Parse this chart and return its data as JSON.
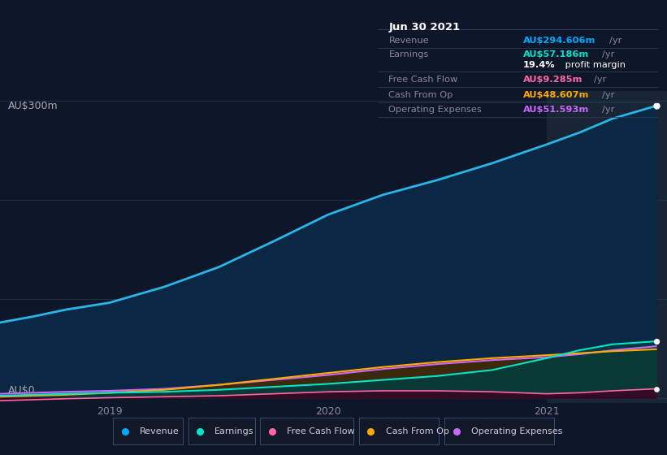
{
  "background_color": "#0e1629",
  "chart_bg_color": "#0e1629",
  "grid_color": "#1e3050",
  "title_box": {
    "date": "Jun 30 2021",
    "rows": [
      {
        "label": "Revenue",
        "value": "AU$294.606m",
        "unit": "/yr",
        "value_color": "#00aaff",
        "label_color": "#888899"
      },
      {
        "label": "Earnings",
        "value": "AU$57.186m",
        "unit": "/yr",
        "value_color": "#00e5cc",
        "label_color": "#888899"
      },
      {
        "label": "",
        "value": "19.4%",
        "unit": " profit margin",
        "value_color": "#ffffff",
        "label_color": "#888899"
      },
      {
        "label": "Free Cash Flow",
        "value": "AU$9.285m",
        "unit": "/yr",
        "value_color": "#ff66aa",
        "label_color": "#888899"
      },
      {
        "label": "Cash From Op",
        "value": "AU$48.607m",
        "unit": "/yr",
        "value_color": "#ffaa00",
        "label_color": "#888899"
      },
      {
        "label": "Operating Expenses",
        "value": "AU$51.593m",
        "unit": "/yr",
        "value_color": "#cc66ff",
        "label_color": "#888899"
      }
    ],
    "separator_rows": [
      0,
      1,
      3,
      4,
      5
    ]
  },
  "ylabel_top": "AU$300m",
  "ylabel_bottom": "AU$0",
  "xtick_labels": [
    "2019",
    "2020",
    "2021"
  ],
  "legend": [
    {
      "label": "Revenue",
      "color": "#00aaff"
    },
    {
      "label": "Earnings",
      "color": "#00e5cc"
    },
    {
      "label": "Free Cash Flow",
      "color": "#ff66aa"
    },
    {
      "label": "Cash From Op",
      "color": "#ffaa00"
    },
    {
      "label": "Operating Expenses",
      "color": "#cc66ff"
    }
  ],
  "series": {
    "x": [
      2018.5,
      2018.65,
      2018.8,
      2019.0,
      2019.25,
      2019.5,
      2019.75,
      2020.0,
      2020.25,
      2020.5,
      2020.75,
      2021.0,
      2021.15,
      2021.3,
      2021.5
    ],
    "revenue": [
      76,
      82,
      89,
      96,
      112,
      132,
      158,
      185,
      205,
      220,
      237,
      256,
      268,
      282,
      295
    ],
    "earnings": [
      2,
      3,
      4,
      5,
      6,
      8,
      11,
      14,
      18,
      22,
      28,
      40,
      48,
      54,
      57
    ],
    "free_cash_flow": [
      -3,
      -2,
      -1,
      0,
      1,
      2,
      4,
      6,
      7,
      7,
      6,
      4,
      5,
      7,
      9
    ],
    "cash_from_op": [
      1,
      2,
      3,
      5,
      8,
      13,
      19,
      25,
      31,
      36,
      40,
      43,
      45,
      47,
      49
    ],
    "operating_expenses": [
      4,
      5,
      6,
      7,
      9,
      13,
      18,
      23,
      29,
      34,
      38,
      41,
      44,
      48,
      52
    ]
  },
  "ylim": [
    -5,
    310
  ],
  "xlim_start": 2018.5,
  "xlim_end": 2021.55,
  "highlight_x_start": 2021.0,
  "highlight_x_end": 2021.55,
  "highlight_color": "#182535"
}
